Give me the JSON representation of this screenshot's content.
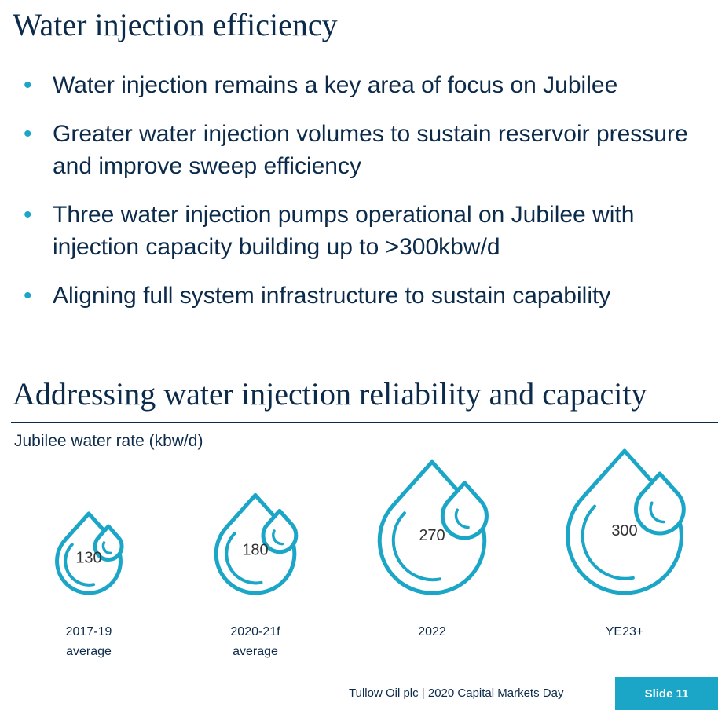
{
  "title": "Water injection efficiency",
  "bullets": [
    "Water injection remains a key area of focus on Jubilee",
    "Greater water injection volumes to sustain reservoir pressure and improve sweep efficiency",
    "Three water injection pumps operational on Jubilee with injection capacity building up to >300kbw/d",
    "Aligning full system infrastructure to sustain capability"
  ],
  "section_title": "Addressing water injection reliability and capacity",
  "chart_data": {
    "type": "drop",
    "title": "Jubilee water rate (kbw/d)",
    "categories": [
      "2017-19 average",
      "2020-21f average",
      "2022",
      "YE23+"
    ],
    "values": [
      130,
      180,
      270,
      300
    ],
    "color": "#1ba6c8"
  },
  "footer": {
    "source": "Tullow Oil plc | 2020 Capital Markets Day",
    "slide": "Slide 11"
  }
}
